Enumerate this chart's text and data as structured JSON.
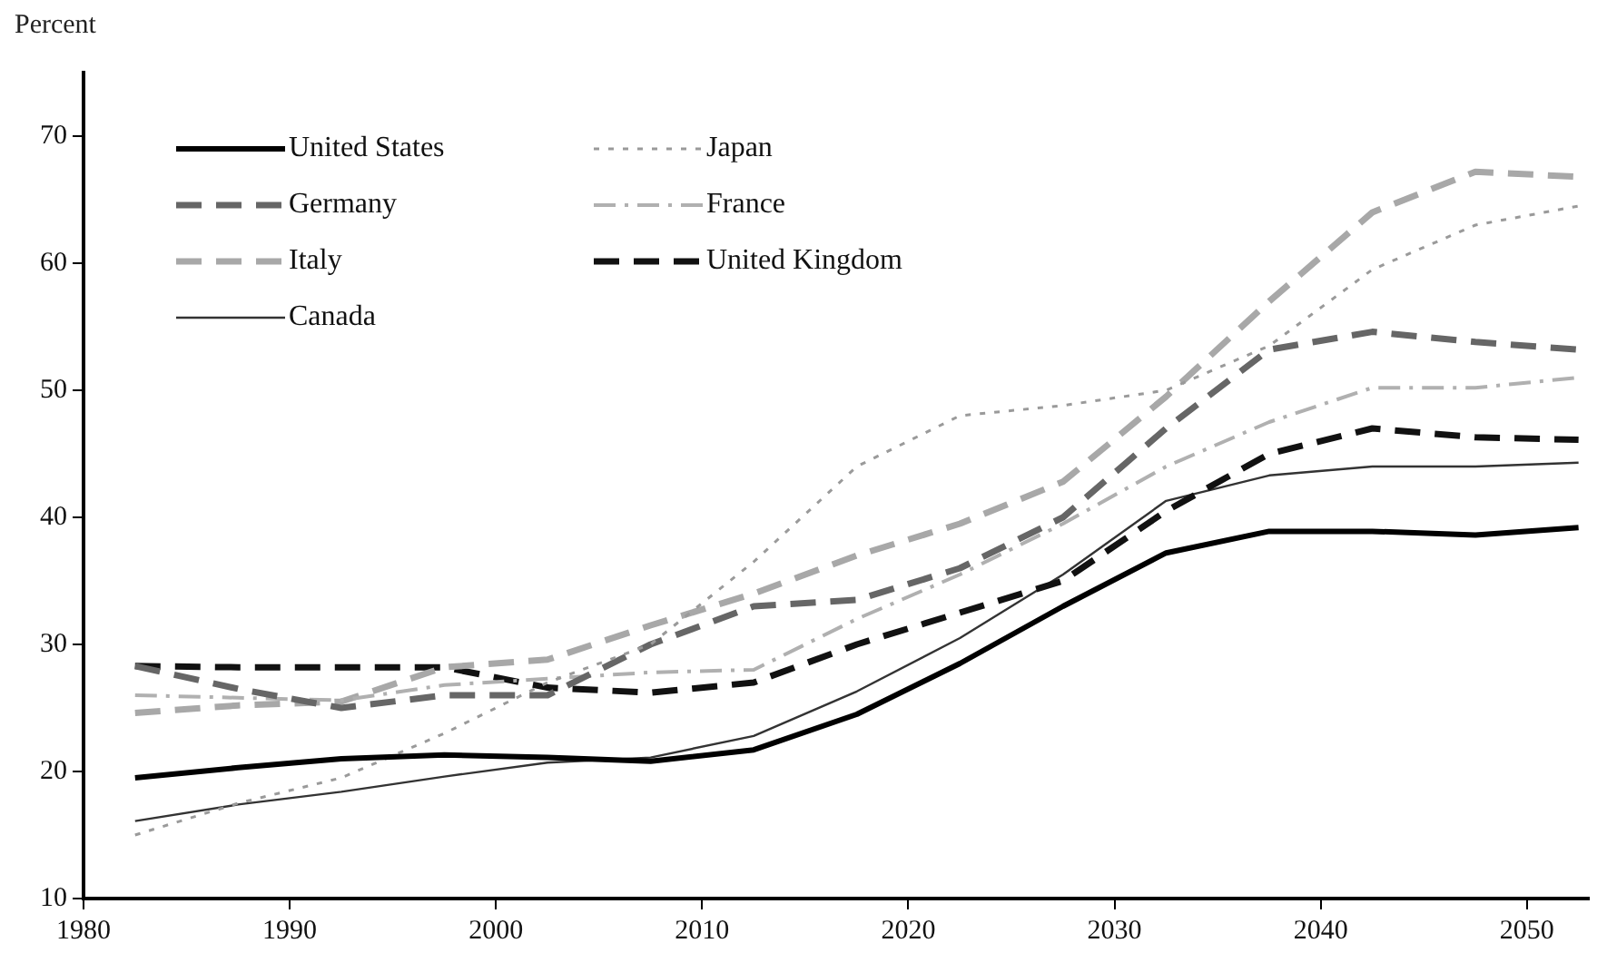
{
  "chart_data": {
    "type": "line",
    "ylabel": "Percent",
    "x": [
      1982.5,
      1987.5,
      1992.5,
      1997.5,
      2002.5,
      2007.5,
      2012.5,
      2017.5,
      2022.5,
      2027.5,
      2032.5,
      2037.5,
      2042.5,
      2047.5,
      2052.5
    ],
    "series": [
      {
        "name": "United States",
        "color": "#000000",
        "line_style": "solid",
        "values": [
          19.5,
          20.3,
          21.0,
          21.3,
          21.1,
          20.8,
          21.7,
          24.5,
          28.5,
          33.0,
          37.2,
          38.9,
          38.9,
          38.6,
          39.2
        ]
      },
      {
        "name": "Japan",
        "color": "#9a9a9a",
        "line_style": "dotted",
        "values": [
          15.0,
          17.5,
          19.5,
          23.0,
          27.0,
          30.0,
          36.5,
          44.0,
          48.0,
          48.8,
          50.0,
          53.5,
          59.5,
          63.0,
          64.5
        ]
      },
      {
        "name": "Germany",
        "color": "#666666",
        "line_style": "dashed",
        "values": [
          28.3,
          26.5,
          25.0,
          26.0,
          26.0,
          30.0,
          33.0,
          33.5,
          36.0,
          40.0,
          47.0,
          53.2,
          54.6,
          53.8,
          53.2
        ]
      },
      {
        "name": "France",
        "color": "#b0b0b0",
        "line_style": "dashdot",
        "values": [
          26.0,
          25.8,
          25.6,
          26.8,
          27.3,
          27.8,
          28.0,
          32.0,
          35.5,
          39.5,
          44.0,
          47.5,
          50.2,
          50.2,
          51.0
        ]
      },
      {
        "name": "Italy",
        "color": "#a8a8a8",
        "line_style": "dashed",
        "values": [
          24.6,
          25.2,
          25.5,
          28.2,
          28.8,
          31.5,
          34.0,
          37.0,
          39.5,
          42.8,
          49.5,
          57.0,
          64.0,
          67.2,
          66.8
        ]
      },
      {
        "name": "United Kingdom",
        "color": "#111111",
        "line_style": "dashed",
        "values": [
          28.3,
          28.2,
          28.2,
          28.2,
          26.6,
          26.2,
          27.0,
          30.0,
          32.5,
          35.0,
          40.5,
          45.0,
          47.0,
          46.3,
          46.1
        ]
      },
      {
        "name": "Canada",
        "color": "#333333",
        "line_style": "solid",
        "values": [
          16.1,
          17.4,
          18.4,
          19.6,
          20.7,
          21.1,
          22.8,
          26.3,
          30.5,
          35.5,
          41.3,
          43.3,
          44.0,
          44.0,
          44.3
        ]
      }
    ],
    "xlim": [
      1980,
      2053
    ],
    "xticks": [
      1980,
      1990,
      2000,
      2010,
      2020,
      2030,
      2040,
      2050
    ],
    "ylim": [
      10,
      75
    ],
    "yticks": [
      10,
      20,
      30,
      40,
      50,
      60,
      70
    ],
    "grid": false,
    "legend": "top left",
    "marker": "none"
  }
}
